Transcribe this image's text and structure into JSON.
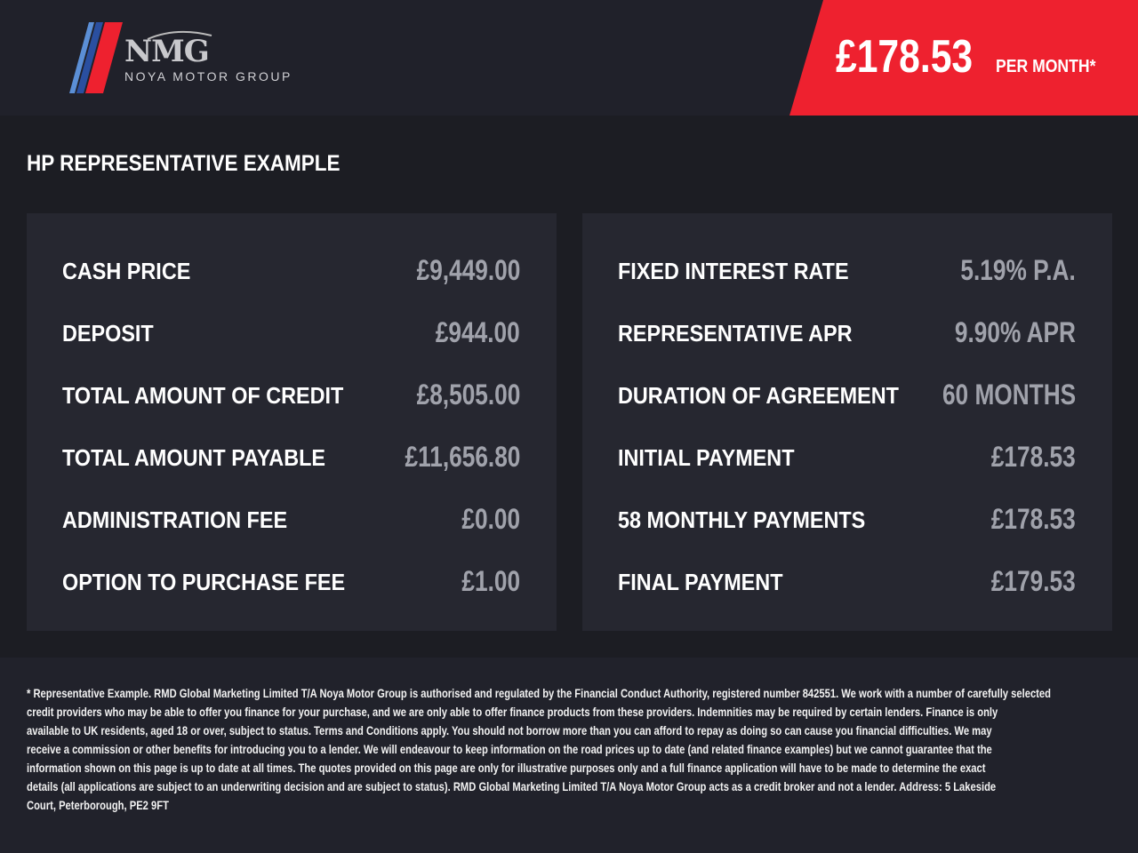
{
  "header": {
    "logo": {
      "mark": "NMG",
      "name": "NOYA MOTOR GROUP"
    },
    "price": "£178.53",
    "per_month": "PER MONTH*",
    "accent_color": "#ee212f"
  },
  "title": "HP REPRESENTATIVE EXAMPLE",
  "left_rows": [
    {
      "label": "CASH PRICE",
      "value": "£9,449.00"
    },
    {
      "label": "DEPOSIT",
      "value": "£944.00"
    },
    {
      "label": "TOTAL AMOUNT OF CREDIT",
      "value": "£8,505.00"
    },
    {
      "label": "TOTAL AMOUNT PAYABLE",
      "value": "£11,656.80"
    },
    {
      "label": "ADMINISTRATION FEE",
      "value": "£0.00"
    },
    {
      "label": "OPTION TO PURCHASE FEE",
      "value": "£1.00"
    }
  ],
  "right_rows": [
    {
      "label": "FIXED INTEREST RATE",
      "value": "5.19% P.A."
    },
    {
      "label": "REPRESENTATIVE APR",
      "value": "9.90% APR"
    },
    {
      "label": "DURATION OF AGREEMENT",
      "value": "60 MONTHS"
    },
    {
      "label": "INITIAL PAYMENT",
      "value": "£178.53"
    },
    {
      "label": "58 MONTHLY PAYMENTS",
      "value": "£178.53"
    },
    {
      "label": "FINAL PAYMENT",
      "value": "£179.53"
    }
  ],
  "disclaimer": [
    "* Representative Example. RMD Global Marketing Limited T/A Noya Motor Group is authorised and regulated by the Financial Conduct Authority, registered number 842551. We work with a number of carefully selected",
    "credit providers who may be able to offer you finance for your purchase, and we are only able to offer finance products from these providers. Indemnities may be required by certain lenders. Finance is only",
    "available to UK residents, aged 18 or over, subject to status. Terms and Conditions apply. You should not borrow more than you can afford to repay as doing so can cause you financial difficulties. We may",
    "receive a commission or other benefits for introducing you to a lender. We will endeavour to keep information on the road prices up to date (and related finance examples) but we cannot guarantee that the",
    "information shown on this page is up to date at all times. The quotes provided on this page are only for illustrative purposes only and a full finance application will have to be made to determine the exact",
    "details (all applications are subject to an underwriting decision and are subject to status). RMD Global Marketing Limited T/A Noya Motor Group acts as a credit broker and not a lender. Address:  5 Lakeside",
    "Court, Peterborough, PE2 9FT"
  ]
}
